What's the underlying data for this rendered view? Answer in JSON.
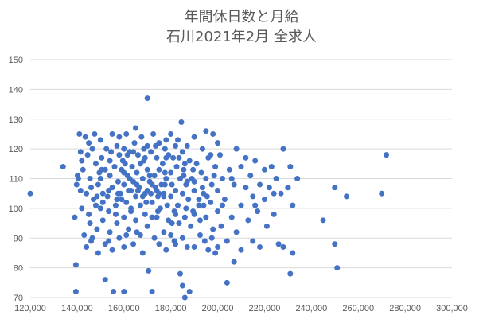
{
  "chart_data": {
    "type": "scatter",
    "title": [
      "年間休日数と月給",
      "石川2021年2月  全求人"
    ],
    "xlabel": "",
    "ylabel": "",
    "xlim": [
      120000,
      300000
    ],
    "ylim": [
      70,
      150
    ],
    "x_ticks": [
      120000,
      140000,
      160000,
      180000,
      200000,
      220000,
      240000,
      260000,
      280000,
      300000
    ],
    "y_ticks": [
      70,
      80,
      90,
      100,
      110,
      120,
      130,
      140,
      150
    ],
    "x_tick_labels": [
      "120,000",
      "140,000",
      "160,000",
      "180,000",
      "200,000",
      "220,000",
      "240,000",
      "260,000",
      "280,000",
      "300,000"
    ],
    "y_tick_labels": [
      "70",
      "80",
      "90",
      "100",
      "110",
      "120",
      "130",
      "140",
      "150"
    ],
    "grid": {
      "horizontal": true,
      "vertical": false
    },
    "legend": "none",
    "colors": {
      "marker": "#4472c4",
      "grid": "#d9d9d9",
      "text": "#595959"
    },
    "series": [
      {
        "points": [
          [
            120000,
            105
          ],
          [
            134000,
            114
          ],
          [
            139000,
            97
          ],
          [
            139500,
            72
          ],
          [
            139500,
            81
          ],
          [
            139800,
            108
          ],
          [
            140200,
            111
          ],
          [
            140500,
            110
          ],
          [
            141000,
            125
          ],
          [
            141500,
            119
          ],
          [
            142000,
            116
          ],
          [
            142000,
            100
          ],
          [
            142500,
            113
          ],
          [
            143000,
            91
          ],
          [
            143500,
            124
          ],
          [
            144000,
            105
          ],
          [
            144000,
            87
          ],
          [
            144500,
            118
          ],
          [
            145000,
            122
          ],
          [
            145000,
            98
          ],
          [
            145500,
            110
          ],
          [
            146000,
            107
          ],
          [
            146000,
            89
          ],
          [
            146500,
            120
          ],
          [
            147000,
            103
          ],
          [
            147500,
            125
          ],
          [
            148000,
            101
          ],
          [
            148000,
            115
          ],
          [
            148500,
            93
          ],
          [
            149000,
            85
          ],
          [
            149000,
            108
          ],
          [
            150000,
            123
          ],
          [
            150000,
            100
          ],
          [
            150000,
            110
          ],
          [
            150500,
            117
          ],
          [
            151000,
            96
          ],
          [
            151000,
            105
          ],
          [
            152000,
            113
          ],
          [
            152000,
            88
          ],
          [
            152000,
            76
          ],
          [
            152500,
            120
          ],
          [
            153000,
            104
          ],
          [
            153500,
            99
          ],
          [
            154000,
            111
          ],
          [
            154000,
            92
          ],
          [
            154500,
            119
          ],
          [
            155000,
            125
          ],
          [
            155000,
            107
          ],
          [
            155000,
            86
          ],
          [
            155500,
            72
          ],
          [
            156000,
            114
          ],
          [
            156500,
            101
          ],
          [
            157000,
            121
          ],
          [
            157000,
            95
          ],
          [
            157500,
            109
          ],
          [
            158000,
            118
          ],
          [
            158000,
            90
          ],
          [
            158500,
            105
          ],
          [
            159000,
            113
          ],
          [
            159000,
            103
          ],
          [
            160000,
            120
          ],
          [
            160000,
            108
          ],
          [
            160000,
            97
          ],
          [
            160000,
            87
          ],
          [
            160000,
            72
          ],
          [
            160500,
            115
          ],
          [
            161000,
            102
          ],
          [
            161000,
            125
          ],
          [
            161500,
            111
          ],
          [
            162000,
            93
          ],
          [
            162000,
            106
          ],
          [
            162500,
            119
          ],
          [
            163000,
            100
          ],
          [
            163500,
            114
          ],
          [
            164000,
            88
          ],
          [
            164000,
            109
          ],
          [
            164500,
            122
          ],
          [
            165000,
            104
          ],
          [
            165000,
            96
          ],
          [
            165000,
            127
          ],
          [
            165500,
            112
          ],
          [
            166000,
            118
          ],
          [
            166500,
            107
          ],
          [
            167000,
            91
          ],
          [
            167000,
            101
          ],
          [
            167500,
            124
          ],
          [
            168000,
            110
          ],
          [
            168000,
            85
          ],
          [
            168500,
            116
          ],
          [
            169000,
            105
          ],
          [
            169000,
            98
          ],
          [
            170000,
            137
          ],
          [
            170000,
            121
          ],
          [
            170000,
            113
          ],
          [
            170000,
            106
          ],
          [
            170000,
            94
          ],
          [
            170500,
            79
          ],
          [
            171000,
            109
          ],
          [
            171500,
            119
          ],
          [
            172000,
            102
          ],
          [
            172000,
            72
          ],
          [
            172500,
            125
          ],
          [
            173000,
            111
          ],
          [
            173000,
            90
          ],
          [
            173500,
            107
          ],
          [
            174000,
            117
          ],
          [
            174000,
            97
          ],
          [
            174500,
            104
          ],
          [
            175000,
            122
          ],
          [
            175000,
            113
          ],
          [
            175000,
            88
          ],
          [
            175500,
            100
          ],
          [
            176000,
            108
          ],
          [
            176500,
            115
          ],
          [
            177000,
            92
          ],
          [
            177000,
            105
          ],
          [
            177500,
            120
          ],
          [
            178000,
            110
          ],
          [
            178000,
            86
          ],
          [
            178500,
            101
          ],
          [
            179000,
            118
          ],
          [
            179000,
            96
          ],
          [
            180000,
            125
          ],
          [
            180000,
            112
          ],
          [
            180000,
            104
          ],
          [
            180000,
            91
          ],
          [
            180500,
            108
          ],
          [
            181000,
            117
          ],
          [
            181500,
            99
          ],
          [
            182000,
            106
          ],
          [
            182000,
            88
          ],
          [
            182500,
            114
          ],
          [
            183000,
            123
          ],
          [
            183000,
            101
          ],
          [
            183500,
            95
          ],
          [
            184000,
            110
          ],
          [
            184000,
            78
          ],
          [
            184500,
            129
          ],
          [
            185000,
            119
          ],
          [
            185000,
            105
          ],
          [
            185000,
            90
          ],
          [
            185000,
            74
          ],
          [
            185500,
            113
          ],
          [
            186000,
            97
          ],
          [
            186000,
            70
          ],
          [
            186500,
            108
          ],
          [
            187000,
            121
          ],
          [
            187000,
            87
          ],
          [
            187500,
            103
          ],
          [
            188000,
            116
          ],
          [
            188000,
            72
          ],
          [
            188500,
            94
          ],
          [
            189000,
            110
          ],
          [
            190000,
            124
          ],
          [
            190000,
            106
          ],
          [
            190000,
            98
          ],
          [
            190000,
            87
          ],
          [
            191000,
            115
          ],
          [
            192000,
            101
          ],
          [
            192500,
            91
          ],
          [
            193000,
            112
          ],
          [
            193500,
            120
          ],
          [
            194000,
            105
          ],
          [
            194500,
            89
          ],
          [
            195000,
            126
          ],
          [
            195000,
            110
          ],
          [
            195000,
            97
          ],
          [
            196000,
            117
          ],
          [
            196000,
            86
          ],
          [
            197000,
            102
          ],
          [
            197500,
            108
          ],
          [
            198000,
            125
          ],
          [
            198000,
            93
          ],
          [
            199000,
            114
          ],
          [
            199000,
            85
          ],
          [
            200000,
            122
          ],
          [
            200000,
            106
          ],
          [
            200000,
            99
          ],
          [
            200000,
            87
          ],
          [
            201000,
            118
          ],
          [
            202000,
            110
          ],
          [
            203000,
            103
          ],
          [
            204000,
            89
          ],
          [
            204000,
            75
          ],
          [
            205000,
            113
          ],
          [
            206000,
            97
          ],
          [
            207000,
            108
          ],
          [
            207000,
            82
          ],
          [
            208000,
            120
          ],
          [
            208000,
            92
          ],
          [
            210000,
            114
          ],
          [
            210000,
            101
          ],
          [
            210000,
            86
          ],
          [
            212000,
            107
          ],
          [
            213000,
            96
          ],
          [
            214000,
            111
          ],
          [
            215000,
            89
          ],
          [
            215000,
            104
          ],
          [
            216000,
            116
          ],
          [
            217000,
            99
          ],
          [
            218000,
            108
          ],
          [
            218000,
            87
          ],
          [
            220000,
            113
          ],
          [
            220000,
            103
          ],
          [
            221000,
            94
          ],
          [
            222000,
            107
          ],
          [
            223000,
            114
          ],
          [
            224000,
            98
          ],
          [
            225000,
            110
          ],
          [
            226000,
            88
          ],
          [
            227000,
            105
          ],
          [
            228000,
            120
          ],
          [
            228000,
            87
          ],
          [
            230000,
            107
          ],
          [
            231000,
            114
          ],
          [
            231000,
            78
          ],
          [
            232000,
            101
          ],
          [
            232000,
            85
          ],
          [
            234000,
            110
          ],
          [
            245000,
            96
          ],
          [
            250000,
            107
          ],
          [
            250000,
            88
          ],
          [
            251000,
            80
          ],
          [
            255000,
            104
          ],
          [
            270000,
            105
          ],
          [
            272000,
            118
          ],
          [
            146500,
            90
          ],
          [
            148500,
            104
          ],
          [
            150500,
            113
          ],
          [
            153500,
            106
          ],
          [
            156500,
            98
          ],
          [
            159500,
            116
          ],
          [
            162500,
            110
          ],
          [
            165500,
            92
          ],
          [
            168500,
            120
          ],
          [
            171500,
            105
          ],
          [
            174500,
            99
          ],
          [
            177500,
            112
          ],
          [
            180500,
            95
          ],
          [
            183500,
            117
          ],
          [
            186500,
            100
          ],
          [
            189500,
            113
          ],
          [
            192500,
            96
          ],
          [
            195500,
            104
          ],
          [
            198500,
            111
          ],
          [
            201500,
            94
          ],
          [
            158000,
            124
          ],
          [
            163000,
            106
          ],
          [
            167000,
            115
          ],
          [
            172000,
            108
          ],
          [
            177000,
            104
          ],
          [
            182000,
            121
          ],
          [
            187000,
            109
          ],
          [
            192000,
            103
          ],
          [
            197000,
            118
          ],
          [
            202000,
            101
          ],
          [
            141500,
            106
          ],
          [
            145500,
            95
          ],
          [
            149500,
            112
          ],
          [
            153500,
            89
          ],
          [
            157500,
            105
          ],
          [
            161500,
            118
          ],
          [
            165500,
            108
          ],
          [
            169500,
            102
          ],
          [
            173500,
            121
          ],
          [
            177500,
            108
          ],
          [
            181500,
            89
          ],
          [
            185500,
            111
          ],
          [
            189500,
            99
          ],
          [
            193500,
            107
          ],
          [
            197500,
            90
          ],
          [
            161000,
            91
          ],
          [
            164000,
            119
          ],
          [
            168000,
            104
          ],
          [
            171000,
            111
          ],
          [
            174000,
            106
          ],
          [
            178000,
            123
          ],
          [
            182000,
            98
          ],
          [
            186000,
            115
          ],
          [
            190000,
            109
          ],
          [
            194000,
            101
          ],
          [
            151000,
            102
          ],
          [
            154000,
            116
          ],
          [
            157000,
            103
          ],
          [
            160000,
            112
          ],
          [
            163000,
            99
          ],
          [
            166000,
            106
          ],
          [
            169000,
            117
          ],
          [
            172000,
            97
          ],
          [
            175000,
            105
          ],
          [
            178000,
            117
          ],
          [
            212000,
            117
          ],
          [
            206000,
            110
          ],
          [
            216000,
            101
          ],
          [
            224000,
            105
          ],
          [
            230000,
            107
          ]
        ]
      }
    ]
  }
}
